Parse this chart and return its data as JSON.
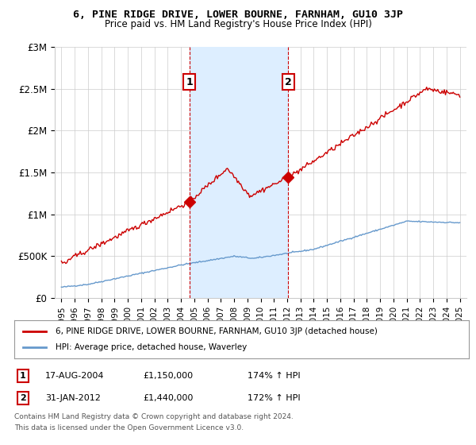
{
  "title": "6, PINE RIDGE DRIVE, LOWER BOURNE, FARNHAM, GU10 3JP",
  "subtitle": "Price paid vs. HM Land Registry's House Price Index (HPI)",
  "legend_line1": "6, PINE RIDGE DRIVE, LOWER BOURNE, FARNHAM, GU10 3JP (detached house)",
  "legend_line2": "HPI: Average price, detached house, Waverley",
  "sale1_label": "1",
  "sale1_date": "17-AUG-2004",
  "sale1_price": "£1,150,000",
  "sale1_hpi": "174% ↑ HPI",
  "sale1_year": 2004.625,
  "sale1_value": 1150000,
  "sale2_label": "2",
  "sale2_date": "31-JAN-2012",
  "sale2_price": "£1,440,000",
  "sale2_hpi": "172% ↑ HPI",
  "sale2_year": 2012.083,
  "sale2_value": 1440000,
  "footer1": "Contains HM Land Registry data © Crown copyright and database right 2024.",
  "footer2": "This data is licensed under the Open Government Licence v3.0.",
  "red_color": "#cc0000",
  "blue_color": "#6699cc",
  "shade_color": "#ddeeff",
  "grid_color": "#cccccc",
  "background_color": "#ffffff",
  "ylim": [
    0,
    3000001
  ],
  "xlim": [
    1994.5,
    2025.5
  ],
  "yticks": [
    0,
    500000,
    1000000,
    1500000,
    2000000,
    2500000,
    3000000
  ],
  "ytick_labels": [
    "£0",
    "£500K",
    "£1M",
    "£1.5M",
    "£2M",
    "£2.5M",
    "£3M"
  ],
  "xticks": [
    1995,
    1996,
    1997,
    1998,
    1999,
    2000,
    2001,
    2002,
    2003,
    2004,
    2005,
    2006,
    2007,
    2008,
    2009,
    2010,
    2011,
    2012,
    2013,
    2014,
    2015,
    2016,
    2017,
    2018,
    2019,
    2020,
    2021,
    2022,
    2023,
    2024,
    2025
  ]
}
